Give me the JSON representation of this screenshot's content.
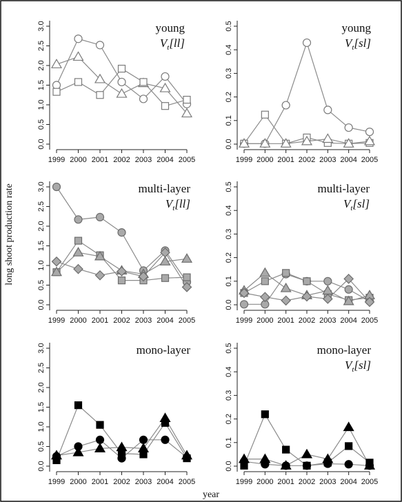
{
  "figure": {
    "ylabel": "long shoot production rate",
    "xlabel": "year"
  },
  "chart_data": [
    {
      "type": "line",
      "title": "young",
      "subtitle": "V_t[ll]",
      "x": [
        1999,
        2000,
        2001,
        2002,
        2003,
        2004,
        2005
      ],
      "ylim": [
        0,
        3.0
      ],
      "yticks": [
        "0.0",
        "0.5",
        "1.0",
        "1.5",
        "2.0",
        "2.5",
        "3.0"
      ],
      "style": "open",
      "series": [
        {
          "marker": "circle",
          "values": [
            1.5,
            2.68,
            2.52,
            1.58,
            1.15,
            1.72,
            1.02
          ]
        },
        {
          "marker": "triangle",
          "values": [
            2.03,
            2.22,
            1.65,
            1.28,
            1.55,
            1.42,
            0.78
          ]
        },
        {
          "marker": "square",
          "values": [
            1.33,
            1.58,
            1.25,
            1.92,
            1.58,
            0.97,
            1.13
          ]
        }
      ]
    },
    {
      "type": "line",
      "title": "young",
      "subtitle": "V_t[sl]",
      "x": [
        1999,
        2000,
        2001,
        2002,
        2003,
        2004,
        2005
      ],
      "ylim": [
        0,
        0.5
      ],
      "yticks": [
        "0.0",
        "0.1",
        "0.2",
        "0.3",
        "0.4",
        "0.5"
      ],
      "style": "open",
      "series": [
        {
          "marker": "circle",
          "values": [
            0.002,
            0.002,
            0.165,
            0.43,
            0.145,
            0.07,
            0.052
          ]
        },
        {
          "marker": "square",
          "values": [
            0.002,
            0.125,
            0.002,
            0.028,
            0.005,
            0.002,
            0.005
          ]
        },
        {
          "marker": "triangle",
          "values": [
            0.002,
            0.002,
            0.002,
            0.012,
            0.022,
            0.002,
            0.012
          ]
        }
      ]
    },
    {
      "type": "line",
      "title": "multi-layer",
      "subtitle": "V_t[ll]",
      "x": [
        1999,
        2000,
        2001,
        2002,
        2003,
        2004,
        2005
      ],
      "ylim": [
        0,
        3.0
      ],
      "yticks": [
        "0.0",
        "0.5",
        "1.0",
        "1.5",
        "2.0",
        "2.5",
        "3.0"
      ],
      "style": "gray",
      "series": [
        {
          "marker": "circle",
          "values": [
            3.0,
            2.17,
            2.23,
            1.84,
            0.87,
            1.38,
            0.58
          ]
        },
        {
          "marker": "square",
          "values": [
            0.83,
            1.63,
            1.26,
            0.62,
            0.62,
            0.68,
            0.7
          ]
        },
        {
          "marker": "triangle",
          "values": [
            0.83,
            1.33,
            1.23,
            0.87,
            0.78,
            1.1,
            1.17
          ]
        },
        {
          "marker": "diamond",
          "values": [
            1.1,
            0.91,
            0.75,
            0.85,
            0.72,
            1.33,
            0.45
          ]
        }
      ]
    },
    {
      "type": "line",
      "title": "multi-layer",
      "subtitle": "V_t[sl]",
      "x": [
        1999,
        2000,
        2001,
        2002,
        2003,
        2004,
        2005
      ],
      "ylim": [
        0,
        0.5
      ],
      "yticks": [
        "0.0",
        "0.1",
        "0.2",
        "0.3",
        "0.4",
        "0.5"
      ],
      "style": "gray",
      "series": [
        {
          "marker": "circle",
          "values": [
            0.002,
            0.002,
            0.13,
            0.1,
            0.1,
            0.065,
            0.015
          ]
        },
        {
          "marker": "square",
          "values": [
            0.05,
            0.1,
            0.135,
            0.1,
            0.045,
            0.02,
            0.03
          ]
        },
        {
          "marker": "triangle",
          "values": [
            0.06,
            0.135,
            0.07,
            0.04,
            0.06,
            0.015,
            0.04
          ]
        },
        {
          "marker": "diamond",
          "values": [
            0.05,
            0.033,
            0.018,
            0.035,
            0.025,
            0.11,
            0.012
          ]
        }
      ]
    },
    {
      "type": "line",
      "title": "mono-layer",
      "subtitle": "",
      "x": [
        1999,
        2000,
        2001,
        2002,
        2003,
        2004,
        2005
      ],
      "ylim": [
        0,
        3.0
      ],
      "yticks": [
        "0.0",
        "0.5",
        "1.0",
        "1.5",
        "2.0",
        "2.5",
        "3.0"
      ],
      "style": "filled",
      "series": [
        {
          "marker": "square",
          "values": [
            0.15,
            1.55,
            1.05,
            0.32,
            0.3,
            1.1,
            0.2
          ]
        },
        {
          "marker": "circle",
          "values": [
            0.25,
            0.5,
            0.67,
            0.2,
            0.67,
            0.67,
            0.22
          ]
        },
        {
          "marker": "triangle",
          "values": [
            0.27,
            0.35,
            0.45,
            0.48,
            0.45,
            1.22,
            0.27
          ]
        }
      ]
    },
    {
      "type": "line",
      "title": "mono-layer",
      "subtitle": "V_t[sl]",
      "x": [
        1999,
        2000,
        2001,
        2002,
        2003,
        2004,
        2005
      ],
      "ylim": [
        0,
        0.5
      ],
      "yticks": [
        "0.0",
        "0.1",
        "0.2",
        "0.3",
        "0.4",
        "0.5"
      ],
      "style": "filled",
      "series": [
        {
          "marker": "square",
          "values": [
            0.002,
            0.22,
            0.07,
            0.002,
            0.015,
            0.085,
            0.015
          ]
        },
        {
          "marker": "triangle",
          "values": [
            0.03,
            0.03,
            0.002,
            0.05,
            0.03,
            0.165,
            0.002
          ]
        },
        {
          "marker": "circle",
          "values": [
            0.02,
            0.008,
            0.002,
            0.002,
            0.01,
            0.008,
            0.002
          ]
        }
      ]
    }
  ]
}
